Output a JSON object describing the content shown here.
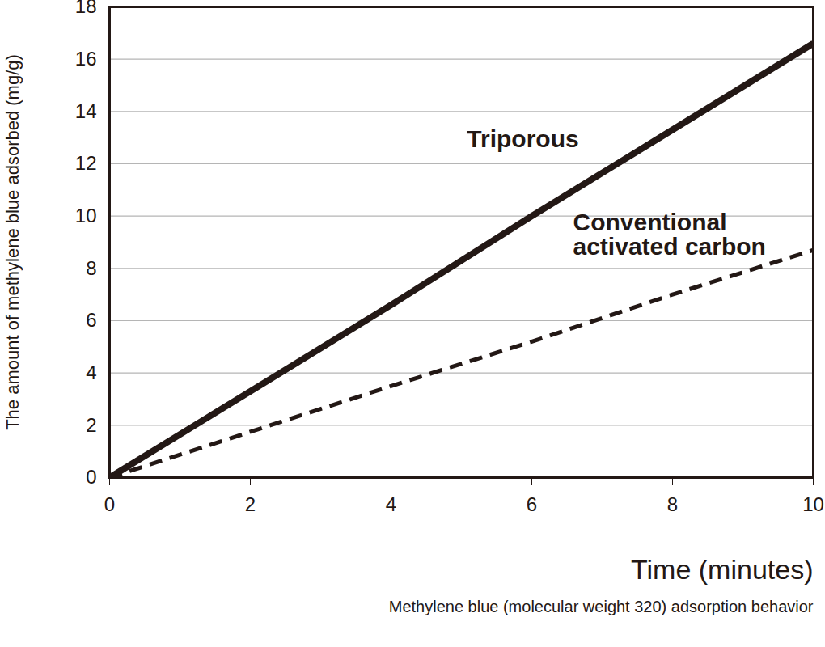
{
  "chart_data": {
    "type": "line",
    "y_label": "The amount of methylene blue adsorbed (mg/g)",
    "x_label": "Time (minutes)",
    "caption": "Methylene blue (molecular weight 320) adsorption behavior",
    "x": [
      0,
      2,
      4,
      6,
      8,
      10
    ],
    "series": [
      {
        "name": "Triporous",
        "color": "#231815",
        "line_style": "solid",
        "values": [
          0,
          3.3,
          6.6,
          10,
          13.3,
          16.6
        ]
      },
      {
        "name": "Conventional activated carbon",
        "color": "#231815",
        "line_style": "dashed",
        "values": [
          0,
          1.75,
          3.5,
          5.2,
          7.0,
          8.7
        ]
      }
    ],
    "xlim": [
      0,
      10
    ],
    "xticks": [
      0,
      2,
      4,
      6,
      8,
      10
    ],
    "ylim": [
      0,
      18
    ],
    "yticks": [
      0,
      2,
      4,
      6,
      8,
      10,
      12,
      14,
      16,
      18
    ],
    "grid": true
  }
}
